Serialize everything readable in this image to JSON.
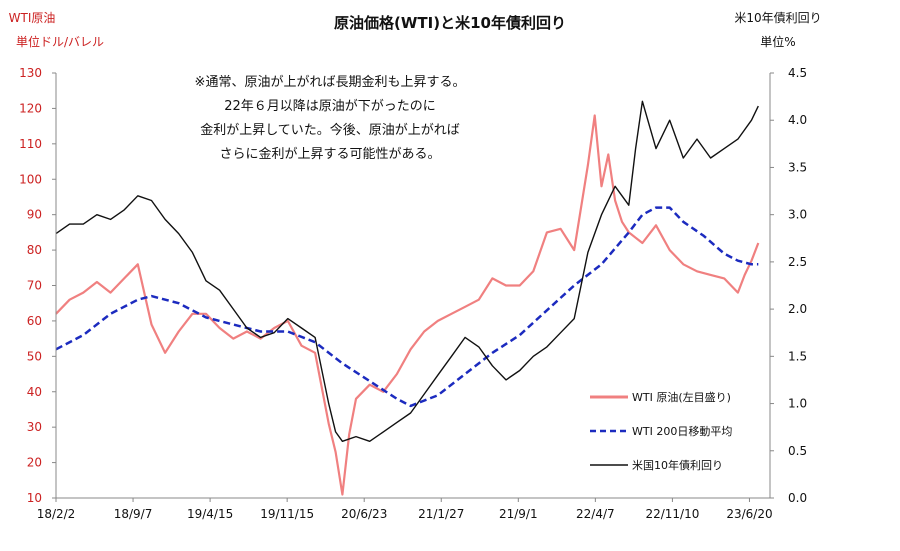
{
  "chart_data": {
    "type": "line",
    "title": "原油価格(WTI)と米10年債利回り",
    "left_axis": {
      "label_line1": "WTI原油",
      "label_line2": "単位ドル/バレル",
      "ylim": [
        10,
        130
      ],
      "ticks": [
        "130",
        "120",
        "110",
        "100",
        "90",
        "80",
        "70",
        "60",
        "50",
        "40",
        "30",
        "20",
        "10"
      ]
    },
    "right_axis": {
      "label_line1": "米10年債利回り",
      "label_line2": "単位%",
      "ylim": [
        0.0,
        4.5
      ],
      "ticks": [
        "4.5",
        "4.0",
        "3.5",
        "3.0",
        "2.5",
        "2.0",
        "1.5",
        "1.0",
        "0.5",
        "0.0"
      ]
    },
    "x_domain": [
      0,
      100
    ],
    "x_ticks": [
      {
        "label": "18/2/2",
        "x": 0
      },
      {
        "label": "18/9/7",
        "x": 11.3
      },
      {
        "label": "19/4/15",
        "x": 22.6
      },
      {
        "label": "19/11/15",
        "x": 33.9
      },
      {
        "label": "20/6/23",
        "x": 45.2
      },
      {
        "label": "21/1/27",
        "x": 56.5
      },
      {
        "label": "21/9/1",
        "x": 67.8
      },
      {
        "label": "22/4/7",
        "x": 79.1
      },
      {
        "label": "22/11/10",
        "x": 90.4
      },
      {
        "label": "23/6/20",
        "x": 101.7
      }
    ],
    "annotation": [
      "※通常、原油が上がれば長期金利も上昇する。",
      "22年６月以降は原油が下がったのに",
      "金利が上昇していた。今後、原油が上がれば",
      "さらに金利が上昇する可能性がある。"
    ],
    "legend": [
      "WTI 原油(左目盛り)",
      "WTI 200日移動平均",
      "米国10年債利回り"
    ],
    "series": [
      {
        "name": "WTI 原油(左目盛り)",
        "axis": "left",
        "color": "#f08080",
        "x": [
          0,
          2,
          4,
          6,
          8,
          10,
          12,
          14,
          16,
          18,
          20,
          22,
          24,
          26,
          28,
          30,
          32,
          34,
          36,
          38,
          40,
          41,
          42,
          43,
          44,
          45,
          46,
          48,
          50,
          52,
          54,
          56,
          58,
          60,
          62,
          64,
          66,
          68,
          70,
          72,
          74,
          76,
          78,
          79,
          80,
          81,
          82,
          83,
          84,
          86,
          88,
          90,
          92,
          94,
          96,
          98,
          100,
          101,
          102,
          103
        ],
        "values": [
          62,
          66,
          68,
          71,
          68,
          72,
          76,
          59,
          51,
          57,
          62,
          62,
          58,
          55,
          57,
          55,
          58,
          60,
          53,
          51,
          31,
          23,
          11,
          28,
          38,
          40,
          42,
          40,
          45,
          52,
          57,
          60,
          62,
          64,
          66,
          72,
          70,
          70,
          74,
          85,
          86,
          80,
          104,
          118,
          98,
          107,
          94,
          88,
          85,
          82,
          87,
          80,
          76,
          74,
          73,
          72,
          68,
          73,
          77,
          82
        ]
      },
      {
        "name": "WTI 200日移動平均",
        "axis": "left",
        "color": "#1c2bbf",
        "x": [
          0,
          4,
          8,
          12,
          14,
          18,
          22,
          26,
          30,
          34,
          38,
          42,
          46,
          50,
          52,
          56,
          60,
          64,
          68,
          72,
          76,
          80,
          84,
          86,
          88,
          90,
          92,
          95,
          98,
          100,
          102,
          103
        ],
        "values": [
          52,
          56,
          62,
          66,
          67,
          65,
          61,
          59,
          57,
          57,
          54,
          48,
          43,
          38,
          36,
          39,
          45,
          51,
          56,
          63,
          70,
          76,
          85,
          90,
          92,
          92,
          88,
          84,
          79,
          77,
          76,
          76
        ]
      },
      {
        "name": "米国10年債利回り",
        "axis": "right",
        "color": "#111111",
        "x": [
          0,
          2,
          4,
          6,
          8,
          10,
          12,
          14,
          16,
          18,
          20,
          22,
          24,
          26,
          28,
          30,
          32,
          34,
          36,
          38,
          40,
          41,
          42,
          44,
          46,
          48,
          50,
          52,
          54,
          56,
          58,
          60,
          62,
          64,
          66,
          68,
          70,
          72,
          74,
          76,
          78,
          80,
          82,
          84,
          85,
          86,
          88,
          90,
          92,
          94,
          96,
          98,
          100,
          102,
          103
        ],
        "values": [
          2.8,
          2.9,
          2.9,
          3.0,
          2.95,
          3.05,
          3.2,
          3.15,
          2.95,
          2.8,
          2.6,
          2.3,
          2.2,
          2.0,
          1.8,
          1.7,
          1.75,
          1.9,
          1.8,
          1.7,
          1.0,
          0.7,
          0.6,
          0.65,
          0.6,
          0.7,
          0.8,
          0.9,
          1.1,
          1.3,
          1.5,
          1.7,
          1.6,
          1.4,
          1.25,
          1.35,
          1.5,
          1.6,
          1.75,
          1.9,
          2.6,
          3.0,
          3.3,
          3.1,
          3.7,
          4.2,
          3.7,
          4.0,
          3.6,
          3.8,
          3.6,
          3.7,
          3.8,
          4.0,
          4.15
        ]
      }
    ]
  }
}
